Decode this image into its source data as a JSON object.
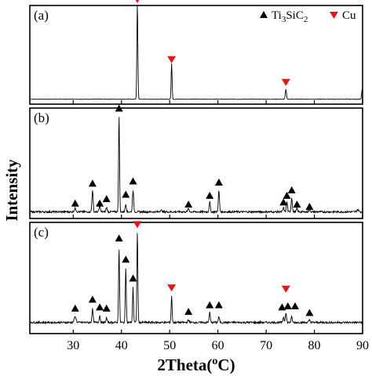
{
  "chart_data": {
    "type": "line",
    "xlabel": "2Theta(°C)",
    "xlabel_parts": {
      "base": "2Theta(",
      "sup": "o",
      "rest": "C)"
    },
    "ylabel": "Intensity",
    "xlim": [
      21,
      90
    ],
    "xticks": [
      30,
      40,
      50,
      60,
      70,
      80,
      90
    ],
    "grid": false,
    "legend": {
      "placement": "top-right",
      "entries": [
        {
          "name": "Ti3SiC2",
          "parts": [
            "Ti",
            "3",
            "SiC",
            "2"
          ],
          "marker": "triangle-up",
          "color": "#000000"
        },
        {
          "name": "Cu",
          "marker": "triangle-down",
          "color": "#e8141c"
        }
      ]
    },
    "panels": [
      {
        "label": "(a)",
        "baseline": 0.05,
        "peaks": [
          [
            43.3,
            0.97,
            0.1
          ],
          [
            50.4,
            0.36,
            0.1
          ],
          [
            74.1,
            0.1,
            0.12
          ],
          [
            89.9,
            0.1,
            0.1
          ]
        ],
        "markers": [
          {
            "x": 43.3,
            "y": 1.06,
            "phase": "Cu"
          },
          {
            "x": 50.4,
            "y": 0.45,
            "phase": "Cu"
          },
          {
            "x": 74.1,
            "y": 0.22,
            "phase": "Cu"
          }
        ]
      },
      {
        "label": "(b)",
        "baseline": 0.06,
        "peaks": [
          [
            30.4,
            0.03,
            0.2
          ],
          [
            34.0,
            0.2,
            0.12
          ],
          [
            35.5,
            0.06,
            0.12
          ],
          [
            36.9,
            0.04,
            0.12
          ],
          [
            39.5,
            0.87,
            0.1
          ],
          [
            40.9,
            0.07,
            0.12
          ],
          [
            42.4,
            0.2,
            0.12
          ],
          [
            48.2,
            0.015,
            0.2
          ],
          [
            53.9,
            0.03,
            0.15
          ],
          [
            58.3,
            0.09,
            0.12
          ],
          [
            60.2,
            0.19,
            0.12
          ],
          [
            73.6,
            0.04,
            0.12
          ],
          [
            74.3,
            0.09,
            0.12
          ],
          [
            75.3,
            0.13,
            0.12
          ],
          [
            76.4,
            0.03,
            0.12
          ],
          [
            79.0,
            0.02,
            0.15
          ],
          [
            89.0,
            0.02,
            0.2
          ]
        ],
        "markers": [
          {
            "x": 30.4,
            "y": 0.14,
            "phase": "Ti3SiC2"
          },
          {
            "x": 34.0,
            "y": 0.32,
            "phase": "Ti3SiC2"
          },
          {
            "x": 35.5,
            "y": 0.14,
            "phase": "Ti3SiC2"
          },
          {
            "x": 36.9,
            "y": 0.18,
            "phase": "Ti3SiC2"
          },
          {
            "x": 39.5,
            "y": 1.0,
            "phase": "Ti3SiC2"
          },
          {
            "x": 40.9,
            "y": 0.22,
            "phase": "Ti3SiC2"
          },
          {
            "x": 42.4,
            "y": 0.34,
            "phase": "Ti3SiC2"
          },
          {
            "x": 53.9,
            "y": 0.13,
            "phase": "Ti3SiC2"
          },
          {
            "x": 58.3,
            "y": 0.21,
            "phase": "Ti3SiC2"
          },
          {
            "x": 60.2,
            "y": 0.33,
            "phase": "Ti3SiC2"
          },
          {
            "x": 73.6,
            "y": 0.15,
            "phase": "Ti3SiC2"
          },
          {
            "x": 74.3,
            "y": 0.21,
            "phase": "Ti3SiC2"
          },
          {
            "x": 75.3,
            "y": 0.26,
            "phase": "Ti3SiC2"
          },
          {
            "x": 76.4,
            "y": 0.13,
            "phase": "Ti3SiC2"
          },
          {
            "x": 79.0,
            "y": 0.11,
            "phase": "Ti3SiC2"
          }
        ]
      },
      {
        "label": "(c)",
        "baseline": 0.1,
        "peaks": [
          [
            30.4,
            0.05,
            0.2
          ],
          [
            34.0,
            0.12,
            0.12
          ],
          [
            35.5,
            0.06,
            0.12
          ],
          [
            36.9,
            0.04,
            0.12
          ],
          [
            39.5,
            0.67,
            0.1
          ],
          [
            40.9,
            0.5,
            0.1
          ],
          [
            42.4,
            0.32,
            0.1
          ],
          [
            43.3,
            0.82,
            0.1
          ],
          [
            50.4,
            0.24,
            0.1
          ],
          [
            53.9,
            0.02,
            0.15
          ],
          [
            58.3,
            0.09,
            0.12
          ],
          [
            60.2,
            0.05,
            0.12
          ],
          [
            73.6,
            0.05,
            0.12
          ],
          [
            74.1,
            0.09,
            0.12
          ],
          [
            75.3,
            0.05,
            0.12
          ],
          [
            79.0,
            0.02,
            0.15
          ]
        ],
        "markers": [
          {
            "x": 30.4,
            "y": 0.23,
            "phase": "Ti3SiC2"
          },
          {
            "x": 34.0,
            "y": 0.31,
            "phase": "Ti3SiC2"
          },
          {
            "x": 35.5,
            "y": 0.24,
            "phase": "Ti3SiC2"
          },
          {
            "x": 36.9,
            "y": 0.23,
            "phase": "Ti3SiC2"
          },
          {
            "x": 39.5,
            "y": 0.86,
            "phase": "Ti3SiC2"
          },
          {
            "x": 40.9,
            "y": 0.67,
            "phase": "Ti3SiC2"
          },
          {
            "x": 42.4,
            "y": 0.5,
            "phase": "Ti3SiC2"
          },
          {
            "x": 43.3,
            "y": 0.98,
            "phase": "Cu"
          },
          {
            "x": 50.4,
            "y": 0.41,
            "phase": "Cu"
          },
          {
            "x": 53.9,
            "y": 0.2,
            "phase": "Ti3SiC2"
          },
          {
            "x": 58.3,
            "y": 0.26,
            "phase": "Ti3SiC2"
          },
          {
            "x": 60.2,
            "y": 0.26,
            "phase": "Ti3SiC2"
          },
          {
            "x": 73.3,
            "y": 0.24,
            "phase": "Ti3SiC2"
          },
          {
            "x": 74.1,
            "y": 0.4,
            "phase": "Cu"
          },
          {
            "x": 74.5,
            "y": 0.25,
            "phase": "Ti3SiC2"
          },
          {
            "x": 76.0,
            "y": 0.25,
            "phase": "Ti3SiC2"
          },
          {
            "x": 79.0,
            "y": 0.19,
            "phase": "Ti3SiC2"
          }
        ]
      }
    ]
  }
}
